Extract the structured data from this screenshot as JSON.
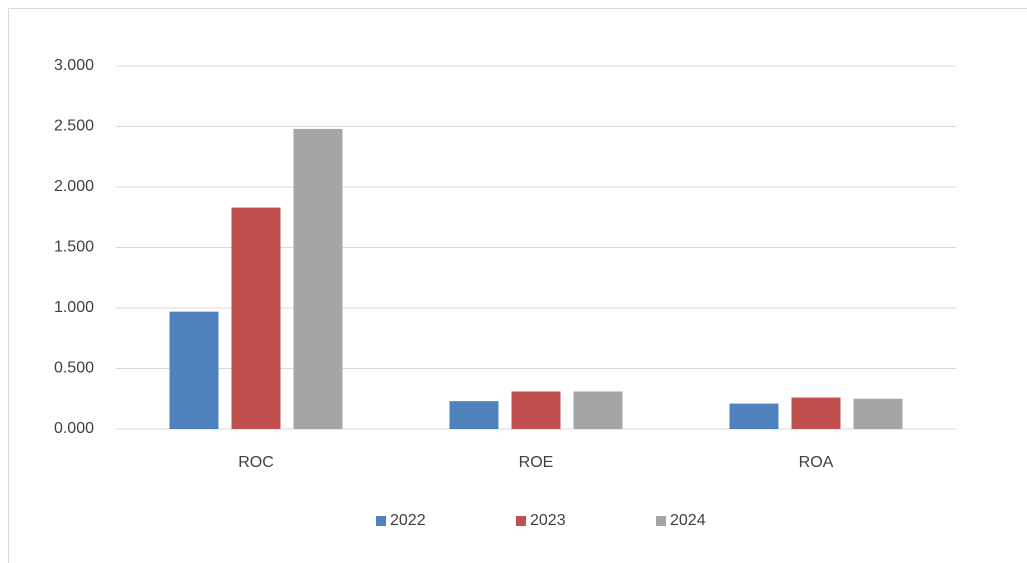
{
  "chart_data": {
    "type": "bar",
    "categories": [
      "ROC",
      "ROE",
      "ROA"
    ],
    "series": [
      {
        "name": "2022",
        "color": "#4f81bd",
        "values": [
          0.97,
          0.23,
          0.21
        ]
      },
      {
        "name": "2023",
        "color": "#c0504d",
        "values": [
          1.83,
          0.31,
          0.26
        ]
      },
      {
        "name": "2024",
        "color": "#a5a5a5",
        "values": [
          2.48,
          0.31,
          0.25
        ]
      }
    ],
    "ylim": [
      0,
      3
    ],
    "yticks": [
      {
        "value": 0,
        "label": "0.000"
      },
      {
        "value": 0.5,
        "label": "0.500"
      },
      {
        "value": 1,
        "label": "1.000"
      },
      {
        "value": 1.5,
        "label": "1.500"
      },
      {
        "value": 2,
        "label": "2.000"
      },
      {
        "value": 2.5,
        "label": "2.500"
      },
      {
        "value": 3,
        "label": "3.000"
      }
    ],
    "grid": true,
    "legend": "bottom"
  }
}
